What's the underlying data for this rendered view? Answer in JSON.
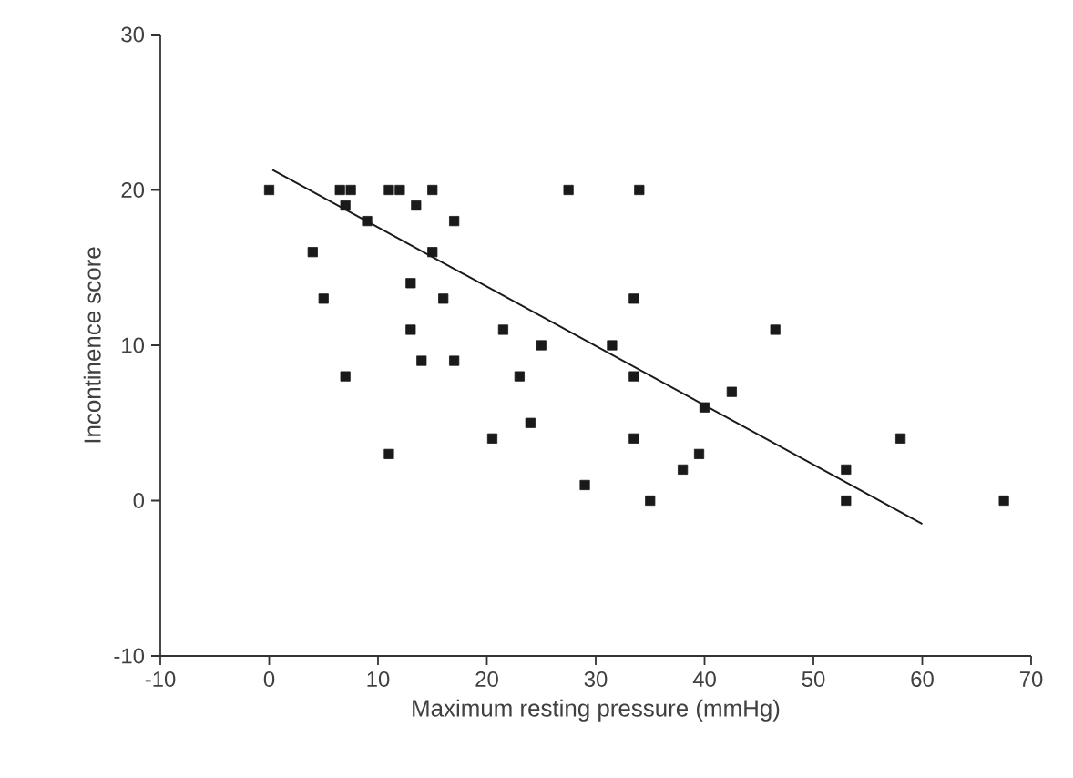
{
  "chart_data": {
    "type": "scatter",
    "xlabel": "Maximum resting pressure (mmHg)",
    "ylabel": "Incontinence score",
    "xlim": [
      -10,
      70
    ],
    "xticks": [
      -10,
      0,
      10,
      20,
      30,
      40,
      50,
      60,
      70
    ],
    "ylim": [
      -10,
      30
    ],
    "yticks": [
      -10,
      0,
      10,
      20,
      30
    ],
    "grid": false,
    "series": [
      {
        "marker": "square",
        "color": "#1a1a1a",
        "x": [
          0,
          4,
          5,
          6.5,
          7.5,
          7,
          7,
          9,
          11,
          12,
          11,
          15,
          13.5,
          17,
          15,
          13,
          16,
          13,
          14,
          17,
          21.5,
          25,
          23,
          24,
          20.5,
          27.5,
          29,
          31.5,
          34,
          33.5,
          33.5,
          46.5,
          42.5,
          40,
          33.5,
          39.5,
          38,
          35,
          58,
          53,
          53,
          67.5
        ],
        "values": [
          20,
          16,
          13,
          20,
          20,
          19,
          8,
          18,
          20,
          20,
          3,
          20,
          19,
          18,
          16,
          14,
          13,
          11,
          9,
          9,
          11,
          10,
          8,
          5,
          4,
          20,
          1,
          10,
          20,
          13,
          8,
          11,
          7,
          6,
          4,
          3,
          2,
          0,
          4,
          2,
          0,
          0
        ]
      },
      {
        "type": "line",
        "marker": "none",
        "color": "#1a1a1a",
        "x": [
          0.3,
          60
        ],
        "values": [
          21.3,
          -1.5
        ]
      }
    ]
  }
}
